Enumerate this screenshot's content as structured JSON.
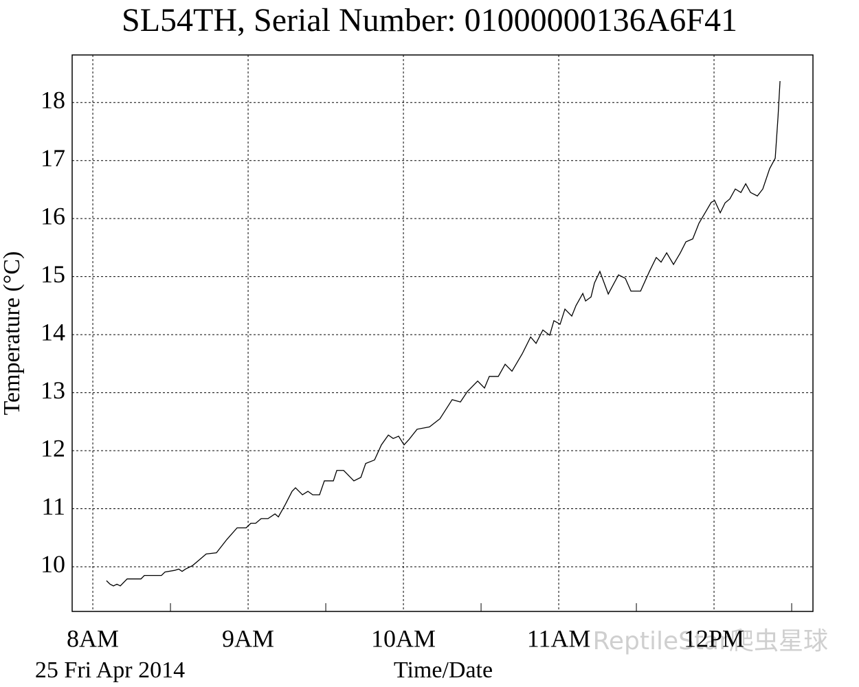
{
  "chart_data": {
    "type": "line",
    "title": "SL54TH,  Serial Number: 01000000136A6F41",
    "y_label": "Temperature (°C)",
    "x_label": "Time/Date",
    "date_label": "25 Fri Apr 2014",
    "watermark": "ReptileStar爬虫星球",
    "color": "#000000",
    "grid": true,
    "x": [
      8.088,
      8.111,
      8.133,
      8.155,
      8.177,
      8.221,
      8.31,
      8.332,
      8.442,
      8.465,
      8.531,
      8.553,
      8.575,
      8.597,
      8.642,
      8.686,
      8.73,
      8.796,
      8.863,
      8.929,
      8.987,
      9.018,
      9.049,
      9.084,
      9.128,
      9.173,
      9.195,
      9.239,
      9.283,
      9.305,
      9.35,
      9.385,
      9.416,
      9.46,
      9.491,
      9.549,
      9.571,
      9.615,
      9.637,
      9.681,
      9.726,
      9.757,
      9.814,
      9.858,
      9.903,
      9.934,
      9.969,
      10.004,
      10.035,
      10.088,
      10.168,
      10.235,
      10.314,
      10.367,
      10.412,
      10.478,
      10.522,
      10.553,
      10.611,
      10.655,
      10.699,
      10.765,
      10.819,
      10.854,
      10.898,
      10.942,
      10.969,
      11.009,
      11.04,
      11.084,
      11.111,
      11.155,
      11.173,
      11.208,
      11.23,
      11.265,
      11.319,
      11.385,
      11.429,
      11.465,
      11.527,
      11.584,
      11.628,
      11.659,
      11.695,
      11.739,
      11.783,
      11.819,
      11.863,
      11.903,
      11.947,
      11.982,
      12.004,
      12.04,
      12.071,
      12.102,
      12.137,
      12.173,
      12.204,
      12.235,
      12.279,
      12.314,
      12.358,
      12.394,
      12.412,
      12.425
    ],
    "values": [
      9.76,
      9.7,
      9.67,
      9.7,
      9.67,
      9.79,
      9.79,
      9.85,
      9.85,
      9.91,
      9.94,
      9.96,
      9.92,
      9.96,
      10.02,
      10.12,
      10.22,
      10.24,
      10.47,
      10.67,
      10.67,
      10.75,
      10.75,
      10.83,
      10.83,
      10.91,
      10.86,
      11.07,
      11.3,
      11.36,
      11.24,
      11.3,
      11.24,
      11.24,
      11.48,
      11.48,
      11.66,
      11.66,
      11.6,
      11.48,
      11.54,
      11.78,
      11.84,
      12.1,
      12.27,
      12.21,
      12.25,
      12.1,
      12.19,
      12.37,
      12.41,
      12.55,
      12.88,
      12.84,
      13.02,
      13.2,
      13.08,
      13.28,
      13.28,
      13.49,
      13.37,
      13.67,
      13.96,
      13.85,
      14.08,
      13.99,
      14.24,
      14.18,
      14.44,
      14.32,
      14.5,
      14.71,
      14.58,
      14.65,
      14.89,
      15.09,
      14.7,
      15.03,
      14.97,
      14.75,
      14.75,
      15.09,
      15.33,
      15.25,
      15.41,
      15.21,
      15.41,
      15.6,
      15.65,
      15.92,
      16.12,
      16.28,
      16.31,
      16.1,
      16.27,
      16.34,
      16.51,
      16.45,
      16.6,
      16.45,
      16.39,
      16.51,
      16.86,
      17.04,
      17.75,
      18.37
    ],
    "xlim": [
      7.867,
      12.637
    ],
    "xticks": [
      {
        "value": 8,
        "label": "8AM"
      },
      {
        "value": 9,
        "label": "9AM"
      },
      {
        "value": 10,
        "label": "10AM"
      },
      {
        "value": 11,
        "label": "11AM"
      },
      {
        "value": 12,
        "label": "12PM"
      }
    ],
    "xminorticks": [
      8.5,
      9.5,
      10.5,
      11.5,
      12.5
    ],
    "ylim": [
      9.23,
      18.82
    ],
    "yticks": [
      10,
      11,
      12,
      13,
      14,
      15,
      16,
      17,
      18
    ]
  }
}
